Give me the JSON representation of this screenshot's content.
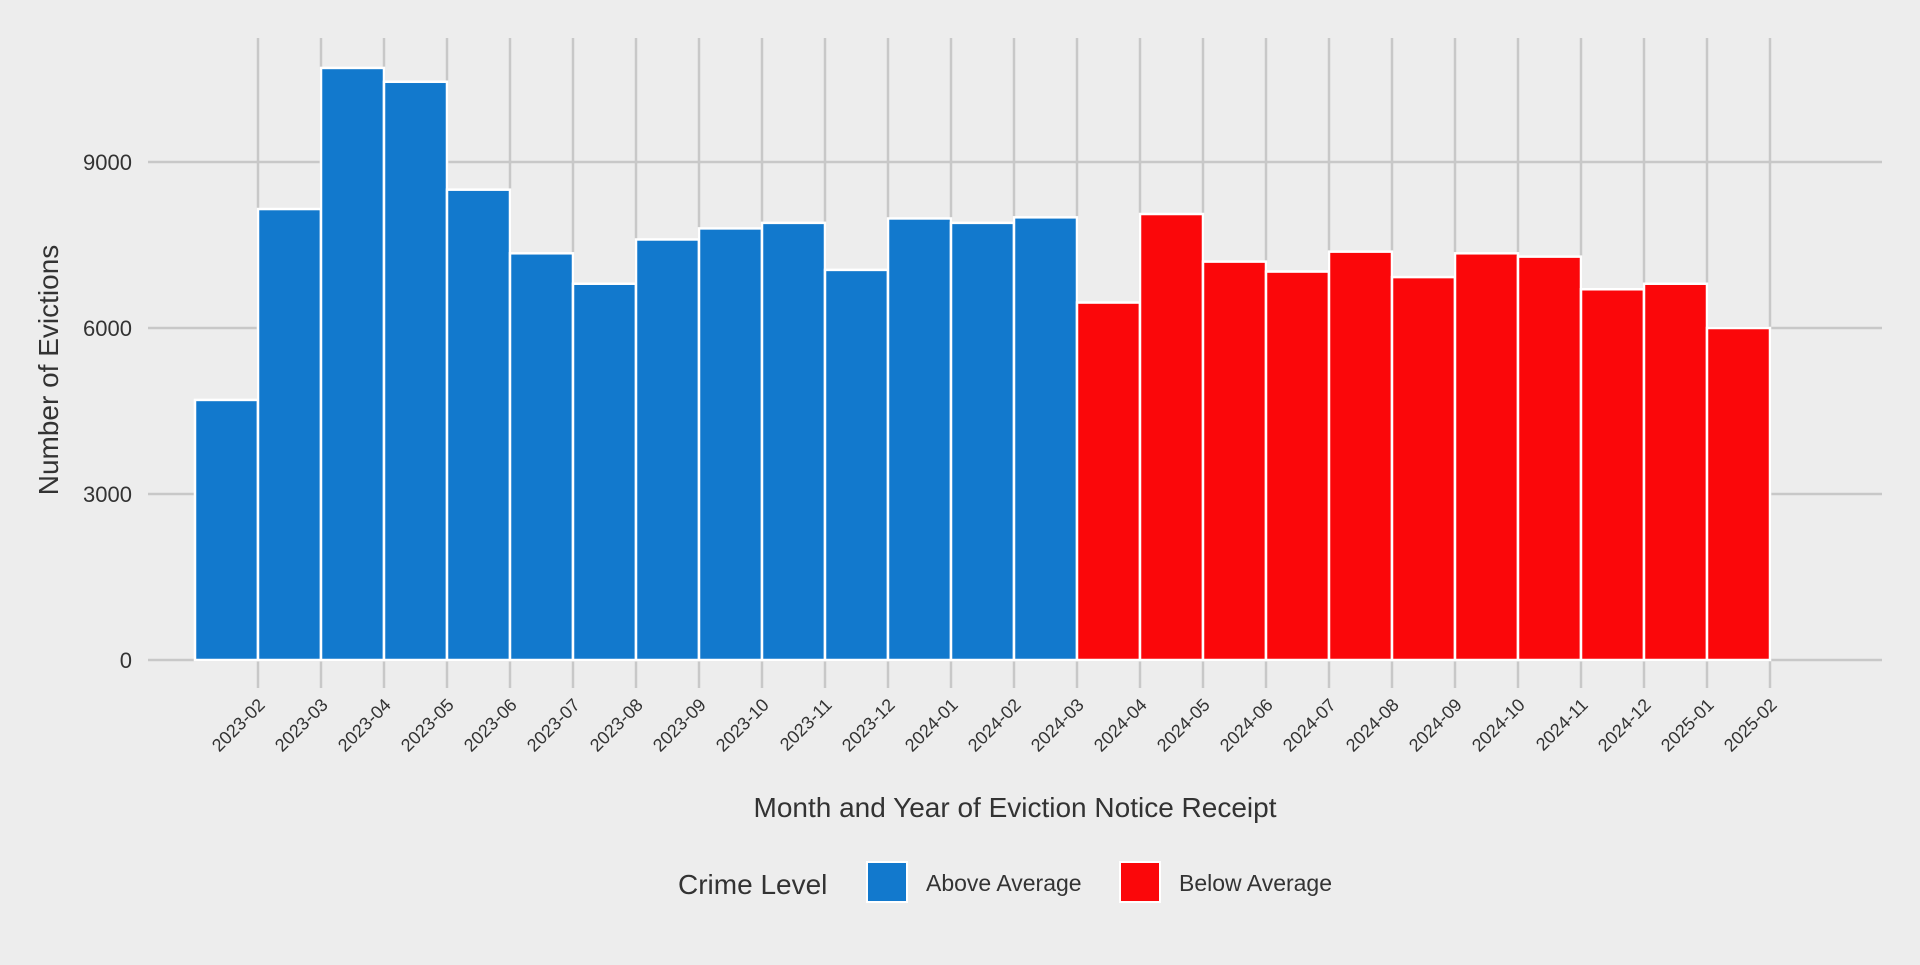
{
  "chart_data": {
    "type": "bar",
    "title": "",
    "xlabel": "Month and Year of Eviction Notice Receipt",
    "ylabel": "Number of Evictions",
    "ylim": [
      0,
      11200
    ],
    "yticks": [
      0,
      3000,
      6000,
      9000
    ],
    "ytick_labels": [
      "0",
      "3000",
      "6000",
      "9000"
    ],
    "grid": true,
    "categories": [
      "2023-02",
      "2023-03",
      "2023-04",
      "2023-05",
      "2023-06",
      "2023-07",
      "2023-08",
      "2023-09",
      "2023-10",
      "2023-11",
      "2023-12",
      "2024-01",
      "2024-02",
      "2024-03",
      "2024-04",
      "2024-05",
      "2024-06",
      "2024-07",
      "2024-08",
      "2024-09",
      "2024-10",
      "2024-11",
      "2024-12",
      "2025-01",
      "2025-02"
    ],
    "values": [
      4700,
      8150,
      10700,
      10450,
      8500,
      7350,
      6800,
      7600,
      7800,
      7900,
      7050,
      7980,
      7900,
      8000,
      6460,
      8060,
      7200,
      7020,
      7380,
      6920,
      7350,
      7290,
      6700,
      6800,
      6000
    ],
    "bar_offset_months": 0.5,
    "groups": [
      "Above Average",
      "Above Average",
      "Above Average",
      "Above Average",
      "Above Average",
      "Above Average",
      "Above Average",
      "Above Average",
      "Above Average",
      "Above Average",
      "Above Average",
      "Above Average",
      "Above Average",
      "Above Average",
      "Below Average",
      "Below Average",
      "Below Average",
      "Below Average",
      "Below Average",
      "Below Average",
      "Below Average",
      "Below Average",
      "Below Average",
      "Below Average",
      "Below Average"
    ],
    "legend": {
      "title": "Crime Level",
      "placement": "bottom",
      "items": [
        {
          "label": "Above Average",
          "color": "#1279cd"
        },
        {
          "label": "Below Average",
          "color": "#fb070a"
        }
      ]
    },
    "colors": {
      "background": "#ededed",
      "grid": "#c8c8c8",
      "bar_border": "#ffffff",
      "text": "#333333"
    }
  }
}
